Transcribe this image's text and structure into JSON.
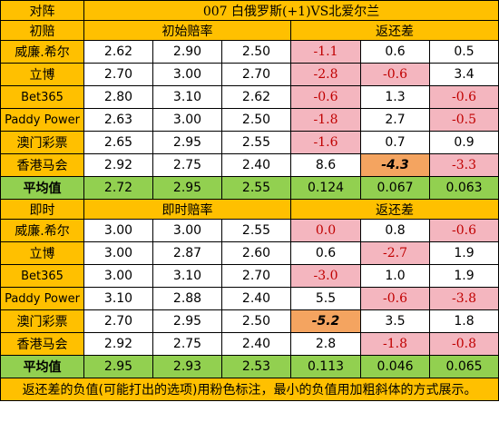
{
  "title_label": "对阵",
  "match": "007 白俄罗斯(+1)VS北爱尔兰",
  "sections": [
    {
      "label": "初赔",
      "odds_header": "初始赔率",
      "return_header": "返还差",
      "rows": [
        {
          "company": "威廉.希尔",
          "o1": "2.62",
          "o2": "2.90",
          "o3": "2.50",
          "r1": "-1.1",
          "r2": "0.6",
          "r3": "0.5"
        },
        {
          "company": "立博",
          "o1": "2.70",
          "o2": "3.00",
          "o3": "2.70",
          "r1": "-2.8",
          "r2": "-0.6",
          "r3": "3.4"
        },
        {
          "company": "Bet365",
          "o1": "2.80",
          "o2": "3.10",
          "o3": "2.62",
          "r1": "-0.6",
          "r2": "1.3",
          "r3": "-0.6"
        },
        {
          "company": "Paddy Power",
          "o1": "2.63",
          "o2": "3.00",
          "o3": "2.50",
          "r1": "-1.8",
          "r2": "2.7",
          "r3": "-0.5"
        },
        {
          "company": "澳门彩票",
          "o1": "2.65",
          "o2": "2.95",
          "o3": "2.55",
          "r1": "-1.6",
          "r2": "0.7",
          "r3": "0.9"
        },
        {
          "company": "香港马会",
          "o1": "2.92",
          "o2": "2.75",
          "o3": "2.40",
          "r1": "8.6",
          "r2": "-4.3",
          "r3": "-3.3"
        }
      ],
      "avg": {
        "company": "平均值",
        "o1": "2.72",
        "o2": "2.95",
        "o3": "2.55",
        "r1": "0.124",
        "r2": "0.067",
        "r3": "0.063"
      }
    },
    {
      "label": "即时",
      "odds_header": "即时赔率",
      "return_header": "返还差",
      "rows": [
        {
          "company": "威廉.希尔",
          "o1": "3.00",
          "o2": "3.00",
          "o3": "2.55",
          "r1": "0.0",
          "r2": "0.8",
          "r3": "-0.6"
        },
        {
          "company": "立博",
          "o1": "3.00",
          "o2": "2.87",
          "o3": "2.60",
          "r1": "0.6",
          "r2": "-2.7",
          "r3": "1.9"
        },
        {
          "company": "Bet365",
          "o1": "3.00",
          "o2": "3.10",
          "o3": "2.70",
          "r1": "-3.0",
          "r2": "1.0",
          "r3": "1.9"
        },
        {
          "company": "Paddy Power",
          "o1": "3.10",
          "o2": "2.88",
          "o3": "2.40",
          "r1": "5.5",
          "r2": "-0.6",
          "r3": "-3.8"
        },
        {
          "company": "澳门彩票",
          "o1": "2.70",
          "o2": "2.95",
          "o3": "2.50",
          "r1": "-5.2",
          "r2": "3.5",
          "r3": "1.8"
        },
        {
          "company": "香港马会",
          "o1": "2.92",
          "o2": "2.75",
          "o3": "2.40",
          "r1": "2.8",
          "r2": "-1.8",
          "r3": "-0.8"
        }
      ],
      "avg": {
        "company": "平均值",
        "o1": "2.95",
        "o2": "2.93",
        "o3": "2.53",
        "r1": "0.113",
        "r2": "0.046",
        "r3": "0.065"
      }
    }
  ],
  "footer": "返还差的负值(可能打出的选项)用粉色标注，最小的负值用加粗斜体的方式展示。",
  "colors": {
    "header": "#ffc000",
    "negative": "#f4b6bf",
    "min_negative": "#f4a460",
    "average": "#92d050"
  }
}
